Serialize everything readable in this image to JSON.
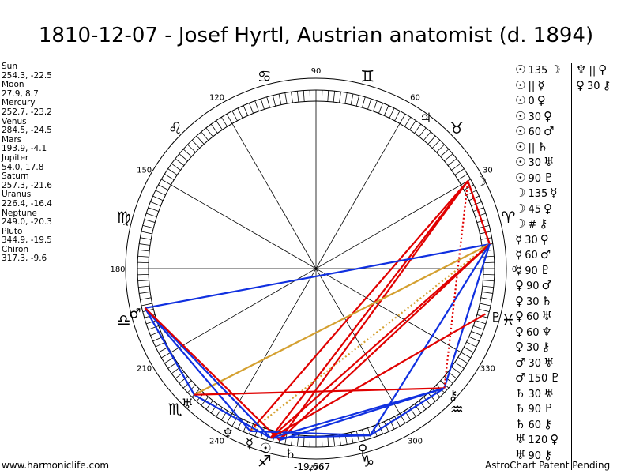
{
  "title": "1810-12-07 - Josef Hyrtl, Austrian anatomist (d. 1894)",
  "planets": [
    {
      "name": "Sun",
      "coords": "254.3, -22.5",
      "lon": 254.3,
      "glyph": "☉"
    },
    {
      "name": "Moon",
      "coords": "27.9, 8.7",
      "lon": 27.9,
      "glyph": "☽"
    },
    {
      "name": "Mercury",
      "coords": "252.7, -23.2",
      "lon": 252.7,
      "glyph": "☿"
    },
    {
      "name": "Venus",
      "coords": "284.5, -24.5",
      "lon": 284.5,
      "glyph": "♀"
    },
    {
      "name": "Mars",
      "coords": "193.9, -4.1",
      "lon": 193.9,
      "glyph": "♂"
    },
    {
      "name": "Jupiter",
      "coords": "54.0, 17.8",
      "lon": 54.0,
      "glyph": "♃"
    },
    {
      "name": "Saturn",
      "coords": "257.3, -21.6",
      "lon": 257.3,
      "glyph": "♄"
    },
    {
      "name": "Uranus",
      "coords": "226.4, -16.4",
      "lon": 226.4,
      "glyph": "♅"
    },
    {
      "name": "Neptune",
      "coords": "249.0, -20.3",
      "lon": 249.0,
      "glyph": "♆"
    },
    {
      "name": "Pluto",
      "coords": "344.9, -19.5",
      "lon": 344.9,
      "glyph": "♇"
    },
    {
      "name": "Chiron",
      "coords": "317.3, -9.6",
      "lon": 317.3,
      "glyph": "⚷"
    }
  ],
  "degree_labels": [
    "0",
    "30",
    "60",
    "90",
    "120",
    "150",
    "180",
    "210",
    "240",
    "270",
    "300",
    "330"
  ],
  "zodiac_glyphs": [
    "♈",
    "♉",
    "♊",
    "♋",
    "♌",
    "♍",
    "♎",
    "♏",
    "♐",
    "♑",
    "♒",
    "♓"
  ],
  "aspects_col1": [
    {
      "p1": "☉",
      "sym": "135",
      "p2": "☽"
    },
    {
      "p1": "☉",
      "sym": "||",
      "p2": "☿"
    },
    {
      "p1": "☉",
      "sym": "0",
      "p2": "♀"
    },
    {
      "p1": "☉",
      "sym": "30",
      "p2": "♀"
    },
    {
      "p1": "☉",
      "sym": "60",
      "p2": "♂"
    },
    {
      "p1": "☉",
      "sym": "||",
      "p2": "♄"
    },
    {
      "p1": "☉",
      "sym": "30",
      "p2": "♅"
    },
    {
      "p1": "☉",
      "sym": "90",
      "p2": "♇"
    },
    {
      "p1": "☽",
      "sym": "135",
      "p2": "☿"
    },
    {
      "p1": "☽",
      "sym": "45",
      "p2": "♀"
    },
    {
      "p1": "☽",
      "sym": "#",
      "p2": "⚷"
    },
    {
      "p1": "☿",
      "sym": "30",
      "p2": "♀"
    },
    {
      "p1": "☿",
      "sym": "60",
      "p2": "♂"
    },
    {
      "p1": "☿",
      "sym": "90",
      "p2": "♇"
    },
    {
      "p1": "♀",
      "sym": "90",
      "p2": "♂"
    },
    {
      "p1": "♀",
      "sym": "30",
      "p2": "♄"
    },
    {
      "p1": "♀",
      "sym": "60",
      "p2": "♅"
    },
    {
      "p1": "♀",
      "sym": "60",
      "p2": "♆"
    },
    {
      "p1": "♀",
      "sym": "30",
      "p2": "⚷"
    },
    {
      "p1": "♂",
      "sym": "30",
      "p2": "♅"
    },
    {
      "p1": "♂",
      "sym": "150",
      "p2": "♇"
    },
    {
      "p1": "♄",
      "sym": "30",
      "p2": "♅"
    },
    {
      "p1": "♄",
      "sym": "90",
      "p2": "♇"
    },
    {
      "p1": "♄",
      "sym": "60",
      "p2": "⚷"
    },
    {
      "p1": "♅",
      "sym": "120",
      "p2": "♀"
    },
    {
      "p1": "♅",
      "sym": "90",
      "p2": "⚷"
    }
  ],
  "aspects_col2": [
    {
      "p1": "♆",
      "sym": "||",
      "p2": "♀"
    },
    {
      "p1": "♀",
      "sym": "30",
      "p2": "⚷"
    }
  ],
  "chart_lines": [
    {
      "from": 30,
      "to": 255,
      "color": "#e00000"
    },
    {
      "from": 30,
      "to": 248,
      "color": "#e00000"
    },
    {
      "from": 30,
      "to": 258,
      "color": "#e00000"
    },
    {
      "from": 30,
      "to": 8,
      "color": "#e00000"
    },
    {
      "from": 30,
      "to": 8,
      "color": "#e00000",
      "dotted": true
    },
    {
      "from": 8,
      "to": 193,
      "color": "#1030e0"
    },
    {
      "from": 8,
      "to": 226,
      "color": "#d4a030"
    },
    {
      "from": 8,
      "to": 248,
      "color": "#d4a030",
      "dotted": true
    },
    {
      "from": 8,
      "to": 255,
      "color": "#e00000"
    },
    {
      "from": 8,
      "to": 258,
      "color": "#e00000"
    },
    {
      "from": 8,
      "to": 288,
      "color": "#1030e0"
    },
    {
      "from": 8,
      "to": 317,
      "color": "#1030e0"
    },
    {
      "from": 193,
      "to": 226,
      "color": "#1030e0"
    },
    {
      "from": 193,
      "to": 248,
      "color": "#1030e0"
    },
    {
      "from": 193,
      "to": 255,
      "color": "#1030e0"
    },
    {
      "from": 193,
      "to": 258,
      "color": "#e00000"
    },
    {
      "from": 226,
      "to": 255,
      "color": "#1030e0"
    },
    {
      "from": 226,
      "to": 317,
      "color": "#e00000"
    },
    {
      "from": 248,
      "to": 288,
      "color": "#1030e0"
    },
    {
      "from": 255,
      "to": 288,
      "color": "#1030e0"
    },
    {
      "from": 255,
      "to": 317,
      "color": "#1030e0"
    },
    {
      "from": 288,
      "to": 317,
      "color": "#1030e0"
    },
    {
      "from": 258,
      "to": 317,
      "color": "#1030e0"
    },
    {
      "from": 255,
      "to": 345,
      "color": "#e00000"
    },
    {
      "from": 317,
      "to": 30,
      "color": "#e00000",
      "dotted": true
    }
  ],
  "footer": {
    "site": "www.harmoniclife.com",
    "value": "-19,667",
    "patent": "AstroChart Patent Pending"
  }
}
